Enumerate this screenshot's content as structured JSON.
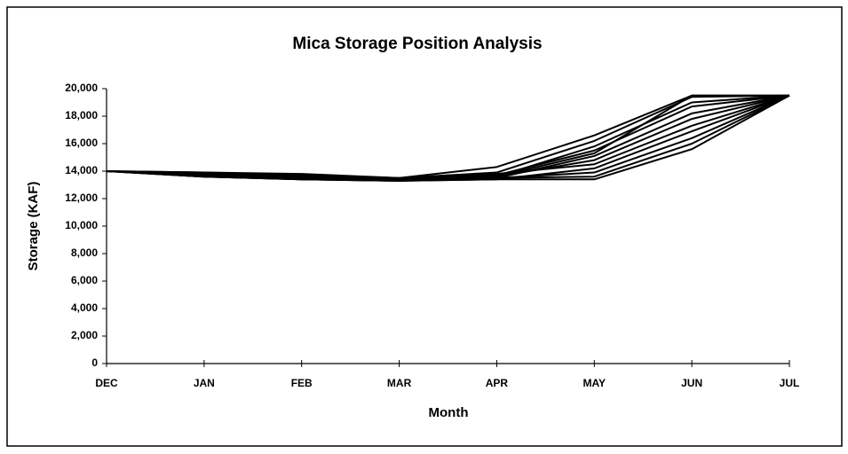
{
  "chart_data": {
    "type": "line",
    "title": "Mica Storage Position Analysis",
    "x_label": "Month",
    "y_label": "Storage (KAF)",
    "categories": [
      "DEC",
      "JAN",
      "FEB",
      "MAR",
      "APR",
      "MAY",
      "JUN",
      "JUL"
    ],
    "ylim": [
      0,
      20000
    ],
    "yticks": [
      0,
      {
        "value": 2000,
        "label": "2,000"
      },
      {
        "value": 4000,
        "label": "4,000"
      },
      {
        "value": 6000,
        "label": "6,000"
      },
      {
        "value": 8000,
        "label": "8,000"
      },
      {
        "value": 10000,
        "label": "10,000"
      },
      {
        "value": 12000,
        "label": "12,000"
      },
      {
        "value": 14000,
        "label": "14,000"
      },
      {
        "value": 16000,
        "label": "16,000"
      },
      {
        "value": 18000,
        "label": "18,000"
      },
      {
        "value": 20000,
        "label": "20,000"
      }
    ],
    "grid": false,
    "series": [
      {
        "color": "#000000",
        "values": [
          14000,
          13900,
          13800,
          13500,
          14300,
          16600,
          19500,
          19500
        ]
      },
      {
        "color": "#000000",
        "values": [
          14000,
          13800,
          13700,
          13500,
          13900,
          16200,
          19400,
          19500
        ]
      },
      {
        "color": "#000000",
        "values": [
          14000,
          13700,
          13500,
          13400,
          13600,
          15800,
          19000,
          19500
        ]
      },
      {
        "color": "#000000",
        "values": [
          14000,
          13800,
          13600,
          13400,
          13700,
          15500,
          18700,
          19500
        ]
      },
      {
        "color": "#000000",
        "values": [
          14000,
          13600,
          13400,
          13300,
          13500,
          15100,
          18200,
          19500
        ]
      },
      {
        "color": "#000000",
        "values": [
          14000,
          13700,
          13500,
          13400,
          13600,
          14800,
          17800,
          19500
        ]
      },
      {
        "color": "#000000",
        "values": [
          14000,
          13900,
          13700,
          13400,
          13800,
          14500,
          17300,
          19500
        ]
      },
      {
        "color": "#000000",
        "values": [
          14000,
          13600,
          13400,
          13300,
          13400,
          14200,
          16900,
          19500
        ]
      },
      {
        "color": "#000000",
        "values": [
          14000,
          13700,
          13500,
          13400,
          13500,
          13900,
          16400,
          19500
        ]
      },
      {
        "color": "#000000",
        "values": [
          14000,
          13800,
          13600,
          13400,
          13500,
          13600,
          16000,
          19500
        ]
      },
      {
        "color": "#000000",
        "values": [
          14000,
          13600,
          13400,
          13300,
          13400,
          13400,
          15600,
          19500
        ]
      },
      {
        "color": "#000000",
        "values": [
          14000,
          13700,
          13500,
          13400,
          13600,
          15300,
          19500,
          19500
        ]
      }
    ]
  }
}
